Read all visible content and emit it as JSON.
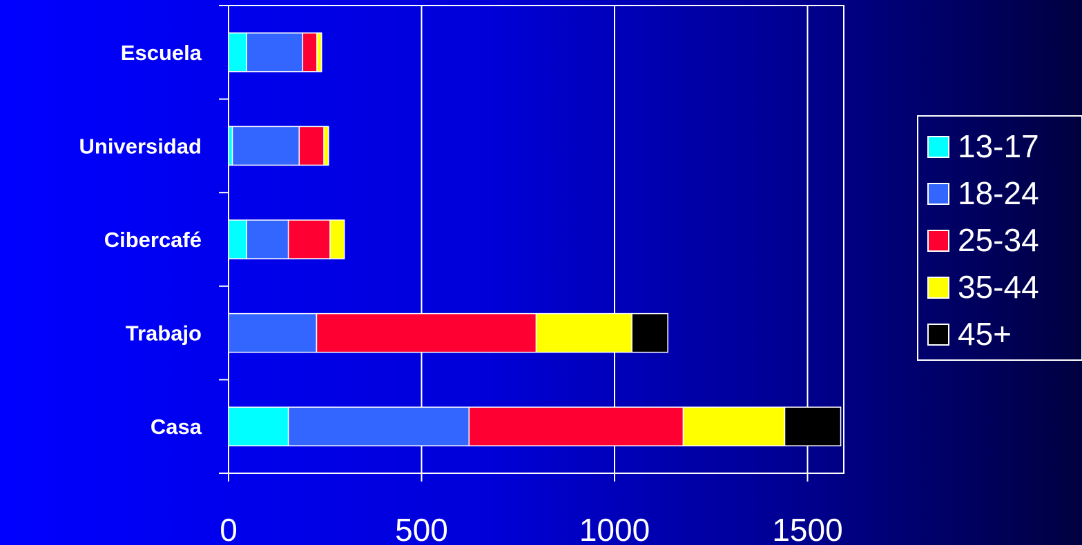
{
  "chart_data": {
    "type": "bar",
    "orientation": "horizontal",
    "stacked": true,
    "title": "",
    "xlabel": "",
    "ylabel": "",
    "categories": [
      "Escuela",
      "Universidad",
      "Cibercafé",
      "Trabajo",
      "Casa"
    ],
    "series": [
      {
        "name": "13-17",
        "color": "#00ffff",
        "values": [
          47,
          10,
          47,
          0,
          155
        ]
      },
      {
        "name": "18-24",
        "color": "#3366ff",
        "values": [
          145,
          173,
          108,
          228,
          468
        ]
      },
      {
        "name": "25-34",
        "color": "#ff0033",
        "values": [
          37,
          64,
          108,
          569,
          555
        ]
      },
      {
        "name": "35-44",
        "color": "#ffff00",
        "values": [
          12,
          12,
          37,
          248,
          263
        ]
      },
      {
        "name": "45+",
        "color": "#000000",
        "values": [
          0,
          0,
          0,
          93,
          145
        ]
      }
    ],
    "x_ticks": [
      "0",
      "500",
      "1000",
      "1500"
    ],
    "xlim": [
      0,
      1600
    ],
    "grid": "vertical",
    "legend_position": "right"
  }
}
